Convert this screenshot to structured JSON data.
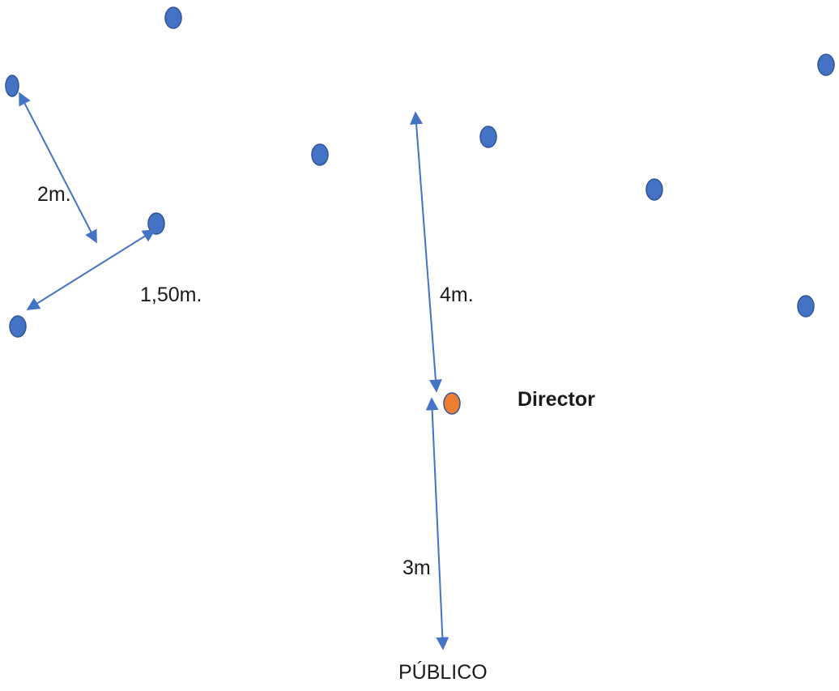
{
  "diagram": {
    "labels": {
      "dist_2m": "2m.",
      "dist_150m": "1,50m.",
      "dist_4m": "4m.",
      "dist_3m": "3m",
      "director": "Director",
      "audience": "PÚBLICO"
    },
    "colors": {
      "singer_dot": "#4472c4",
      "singer_outline": "#2f5597",
      "director_dot": "#ed7d31",
      "director_outline": "#2f5597",
      "arrow": "#4472c4"
    }
  }
}
